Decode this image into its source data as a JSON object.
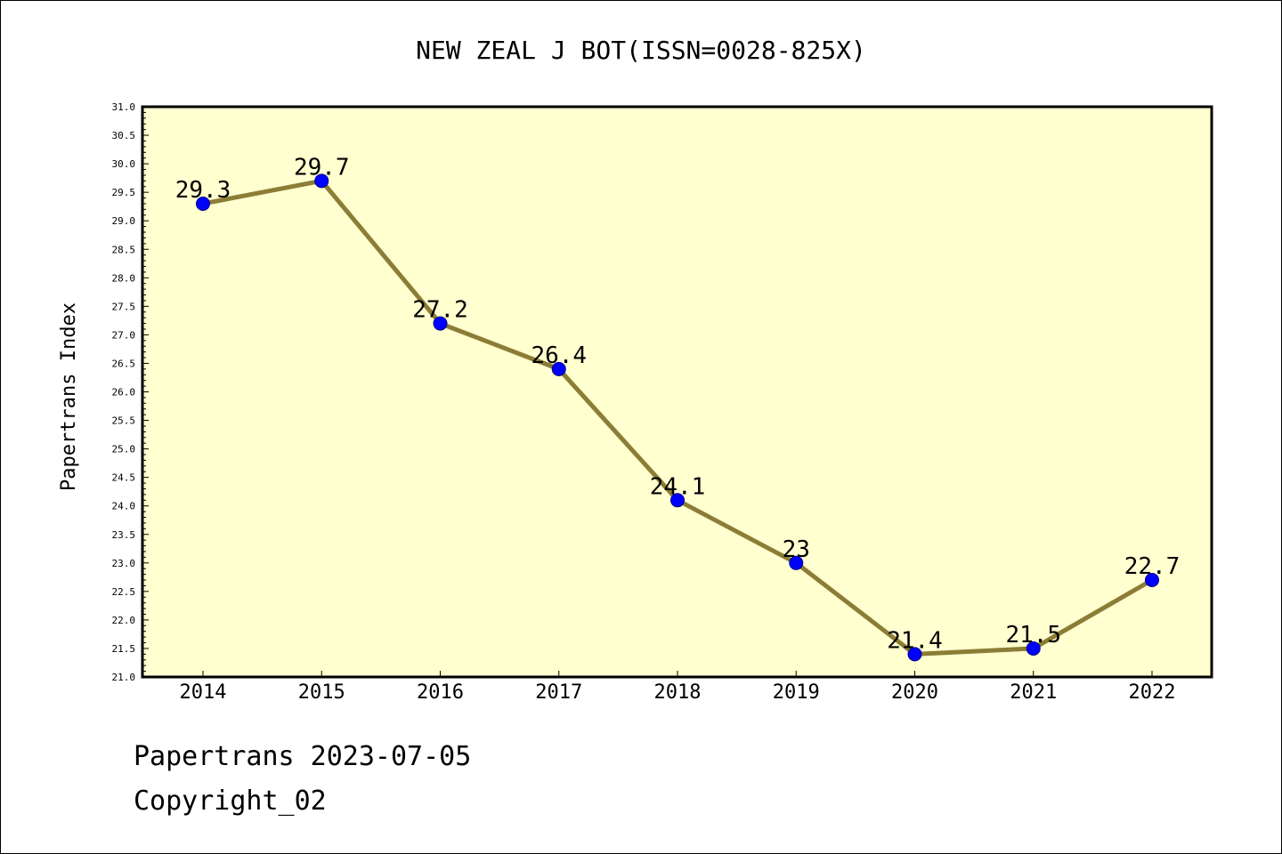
{
  "chart_data": {
    "type": "line",
    "title": "NEW ZEAL J BOT(ISSN=0028-825X)",
    "ylabel": "Papertrans Index",
    "xlabel": "",
    "categories": [
      "2014",
      "2015",
      "2016",
      "2017",
      "2018",
      "2019",
      "2020",
      "2021",
      "2022"
    ],
    "series": [
      {
        "values": [
          29.3,
          29.7,
          27.2,
          26.4,
          24.1,
          23.0,
          21.4,
          21.5,
          22.7
        ],
        "labels": [
          "29.3",
          "29.7",
          "27.2",
          "26.4",
          "24.1",
          "23",
          "21.4",
          "21.5",
          "22.7"
        ]
      }
    ],
    "ylim": [
      21.0,
      31.0
    ],
    "yticks": [
      "21.0",
      "21.5",
      "22.0",
      "22.5",
      "23.0",
      "23.5",
      "24.0",
      "24.5",
      "25.0",
      "25.5",
      "26.0",
      "26.5",
      "27.0",
      "27.5",
      "28.0",
      "28.5",
      "29.0",
      "29.5",
      "30.0",
      "30.5",
      "31.0"
    ],
    "grid": false,
    "colors": {
      "plot_background": "#ffffd0",
      "line": "#8b7d35",
      "marker": "#0000ff"
    }
  },
  "footer": {
    "line1": "Papertrans 2023-07-05",
    "line2": "Copyright_02"
  }
}
